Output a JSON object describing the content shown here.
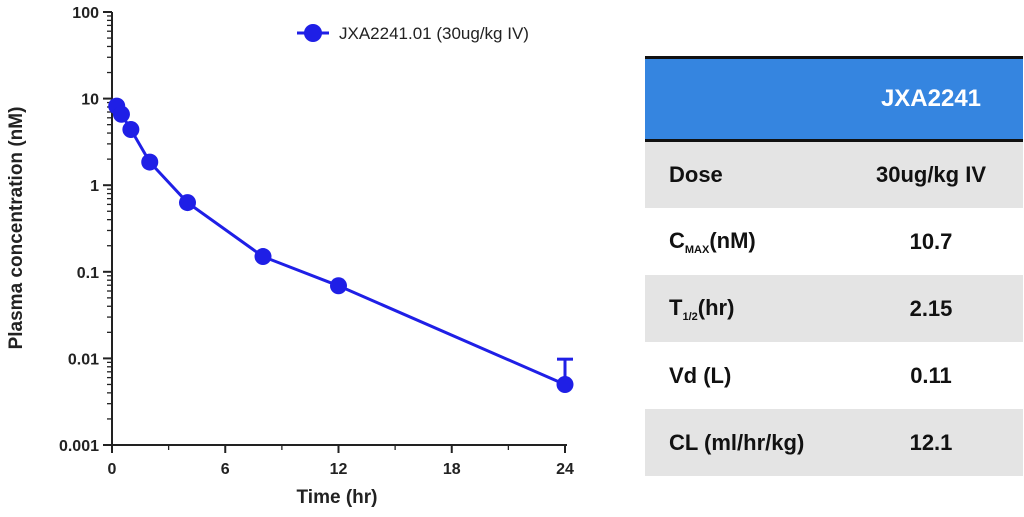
{
  "chart_data": {
    "type": "line",
    "title": "",
    "xlabel": "Time (hr)",
    "ylabel": "Plasma concentration (nM)",
    "xlim": [
      0,
      24
    ],
    "ylim": [
      0.001,
      100
    ],
    "yscale": "log",
    "x_ticks": [
      0,
      6,
      12,
      18,
      24
    ],
    "y_ticks": [
      0.001,
      0.01,
      0.1,
      1,
      10,
      100
    ],
    "y_tick_labels": [
      "0.001",
      "0.01",
      "0.1",
      "1",
      "10",
      "100"
    ],
    "grid": false,
    "legend_position": "top",
    "color": "#1f1fe6",
    "series": [
      {
        "name": "JXA2241.01 (30ug/kg IV)",
        "x": [
          0.25,
          0.5,
          1,
          2,
          4,
          8,
          12,
          24
        ],
        "y": [
          8.2,
          6.6,
          4.4,
          1.85,
          0.63,
          0.15,
          0.069,
          0.005
        ],
        "error_upper": [
          null,
          null,
          null,
          null,
          null,
          null,
          null,
          0.0098
        ]
      }
    ]
  },
  "table": {
    "header": "JXA2241",
    "rows": [
      {
        "label": "Dose",
        "value": "30ug/kg IV"
      },
      {
        "label_main": "C",
        "label_sub": "MAX",
        "label_tail": "(nM)",
        "value": "10.7"
      },
      {
        "label_main": "T",
        "label_sub": "1/2",
        "label_tail": "(hr)",
        "value": "2.15"
      },
      {
        "label": "Vd (L)",
        "value": "0.11"
      },
      {
        "label": "CL (ml/hr/kg)",
        "value": "12.1"
      }
    ]
  }
}
